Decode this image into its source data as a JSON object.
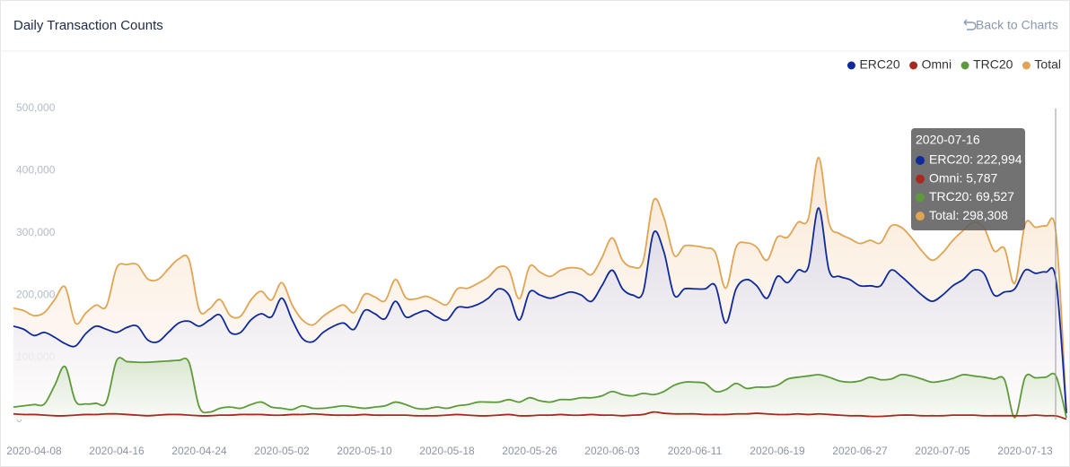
{
  "header": {
    "back_link": "Back to Charts"
  },
  "chart_data": {
    "type": "line",
    "title": "Daily Transaction Counts",
    "legend": "top-right",
    "grid": false,
    "ylim": [
      0,
      500000
    ],
    "yticks": [
      0,
      {
        "value": 100000,
        "label": "100,000"
      },
      {
        "value": 200000,
        "label": "200,000"
      },
      {
        "value": 300000,
        "label": "300,000"
      },
      {
        "value": 400000,
        "label": "400,000"
      },
      {
        "value": 500000,
        "label": "500,000"
      }
    ],
    "categories": [
      null,
      null,
      "2020-04-08",
      null,
      null,
      null,
      null,
      null,
      null,
      null,
      "2020-04-16",
      null,
      null,
      null,
      null,
      null,
      null,
      null,
      "2020-04-24",
      null,
      null,
      null,
      null,
      null,
      null,
      null,
      "2020-05-02",
      null,
      null,
      null,
      null,
      null,
      null,
      null,
      "2020-05-10",
      null,
      null,
      null,
      null,
      null,
      null,
      null,
      "2020-05-18",
      null,
      null,
      null,
      null,
      null,
      null,
      null,
      "2020-05-26",
      null,
      null,
      null,
      null,
      null,
      null,
      null,
      "2020-06-03",
      null,
      null,
      null,
      null,
      null,
      null,
      null,
      "2020-06-11",
      null,
      null,
      null,
      null,
      null,
      null,
      null,
      "2020-06-19",
      null,
      null,
      null,
      null,
      null,
      null,
      null,
      "2020-06-27",
      null,
      null,
      null,
      null,
      null,
      null,
      null,
      "2020-07-05",
      null,
      null,
      null,
      null,
      null,
      null,
      null,
      "2020-07-13",
      null,
      null,
      null,
      null
    ],
    "series": [
      {
        "name": "ERC20",
        "color": "#0f2a9b",
        "values": [
          150000,
          145000,
          135000,
          140000,
          132000,
          122000,
          118000,
          138000,
          150000,
          145000,
          140000,
          148000,
          150000,
          128000,
          125000,
          140000,
          155000,
          158000,
          150000,
          160000,
          168000,
          140000,
          140000,
          160000,
          170000,
          165000,
          195000,
          160000,
          130000,
          125000,
          140000,
          150000,
          155000,
          145000,
          175000,
          170000,
          162000,
          190000,
          165000,
          170000,
          175000,
          165000,
          160000,
          180000,
          180000,
          185000,
          195000,
          210000,
          200000,
          160000,
          205000,
          200000,
          195000,
          200000,
          205000,
          200000,
          190000,
          215000,
          240000,
          210000,
          200000,
          205000,
          300000,
          270000,
          200000,
          210000,
          210000,
          210000,
          215000,
          155000,
          210000,
          225000,
          215000,
          195000,
          230000,
          220000,
          240000,
          245000,
          340000,
          240000,
          230000,
          225000,
          215000,
          215000,
          215000,
          240000,
          230000,
          215000,
          200000,
          190000,
          200000,
          215000,
          225000,
          240000,
          235000,
          200000,
          205000,
          210000,
          240000,
          235000,
          237000,
          222994,
          10000
        ]
      },
      {
        "name": "Omni",
        "color": "#a82a1e",
        "values": [
          9000,
          8000,
          8000,
          7000,
          6000,
          6000,
          7000,
          8000,
          8000,
          9000,
          9000,
          8000,
          7000,
          6000,
          7000,
          8000,
          8000,
          7000,
          6000,
          6000,
          7000,
          7000,
          8000,
          8000,
          8000,
          7000,
          7000,
          8000,
          8000,
          9000,
          8000,
          7000,
          7000,
          7000,
          8000,
          7000,
          7000,
          7000,
          7000,
          6000,
          6000,
          6000,
          7000,
          8000,
          7000,
          6000,
          6000,
          7000,
          8000,
          6000,
          6000,
          7000,
          7000,
          8000,
          7000,
          7000,
          8000,
          7000,
          7000,
          6000,
          7000,
          8000,
          12000,
          10000,
          9000,
          9000,
          9000,
          8000,
          8000,
          8000,
          9000,
          9000,
          10000,
          9000,
          8000,
          8000,
          9000,
          8000,
          9000,
          8000,
          7000,
          6000,
          6000,
          5000,
          5000,
          6000,
          7000,
          7000,
          6000,
          6000,
          6000,
          7000,
          7000,
          7000,
          6000,
          6000,
          6000,
          6000,
          6000,
          7000,
          6000,
          5787,
          500
        ]
      },
      {
        "name": "TRC20",
        "color": "#5e9a3c",
        "values": [
          20000,
          22000,
          24000,
          25000,
          55000,
          85000,
          30000,
          25000,
          26000,
          28000,
          95000,
          93000,
          92000,
          92000,
          93000,
          94000,
          95000,
          92000,
          20000,
          12000,
          18000,
          20000,
          18000,
          24000,
          28000,
          20000,
          18000,
          16000,
          22000,
          18000,
          18000,
          20000,
          22000,
          20000,
          18000,
          20000,
          22000,
          28000,
          24000,
          18000,
          17000,
          20000,
          18000,
          22000,
          24000,
          28000,
          28000,
          28000,
          32000,
          28000,
          35000,
          30000,
          28000,
          32000,
          32000,
          35000,
          35000,
          38000,
          45000,
          40000,
          38000,
          42000,
          40000,
          45000,
          55000,
          60000,
          60000,
          58000,
          45000,
          48000,
          58000,
          50000,
          52000,
          52000,
          55000,
          65000,
          68000,
          70000,
          72000,
          68000,
          62000,
          60000,
          62000,
          68000,
          64000,
          65000,
          72000,
          70000,
          65000,
          60000,
          62000,
          66000,
          72000,
          70000,
          68000,
          65000,
          64000,
          3000,
          68000,
          67000,
          68000,
          69527,
          3000
        ]
      },
      {
        "name": "Total",
        "color": "#e0a452",
        "values": [
          179000,
          175000,
          167000,
          172000,
          193000,
          213000,
          155000,
          171000,
          184000,
          182000,
          244000,
          249000,
          249000,
          226000,
          225000,
          242000,
          258000,
          257000,
          176000,
          178000,
          193000,
          167000,
          166000,
          192000,
          206000,
          192000,
          220000,
          184000,
          160000,
          152000,
          166000,
          177000,
          184000,
          172000,
          201000,
          197000,
          191000,
          225000,
          196000,
          194000,
          198000,
          191000,
          185000,
          210000,
          211000,
          219000,
          229000,
          245000,
          240000,
          194000,
          246000,
          237000,
          230000,
          240000,
          244000,
          242000,
          233000,
          260000,
          292000,
          256000,
          245000,
          255000,
          352000,
          325000,
          264000,
          279000,
          279000,
          276000,
          268000,
          211000,
          277000,
          284000,
          277000,
          256000,
          293000,
          293000,
          317000,
          323000,
          421000,
          316000,
          299000,
          291000,
          283000,
          288000,
          284000,
          311000,
          309000,
          292000,
          271000,
          256000,
          268000,
          288000,
          304000,
          317000,
          309000,
          271000,
          275000,
          219000,
          314000,
          309000,
          311000,
          298308,
          13500
        ]
      }
    ],
    "tooltip": {
      "title": "2020-07-16",
      "lines": [
        "ERC20: 222,994",
        "Omni: 5,787",
        "TRC20: 69,527",
        "Total: 298,308"
      ]
    }
  }
}
